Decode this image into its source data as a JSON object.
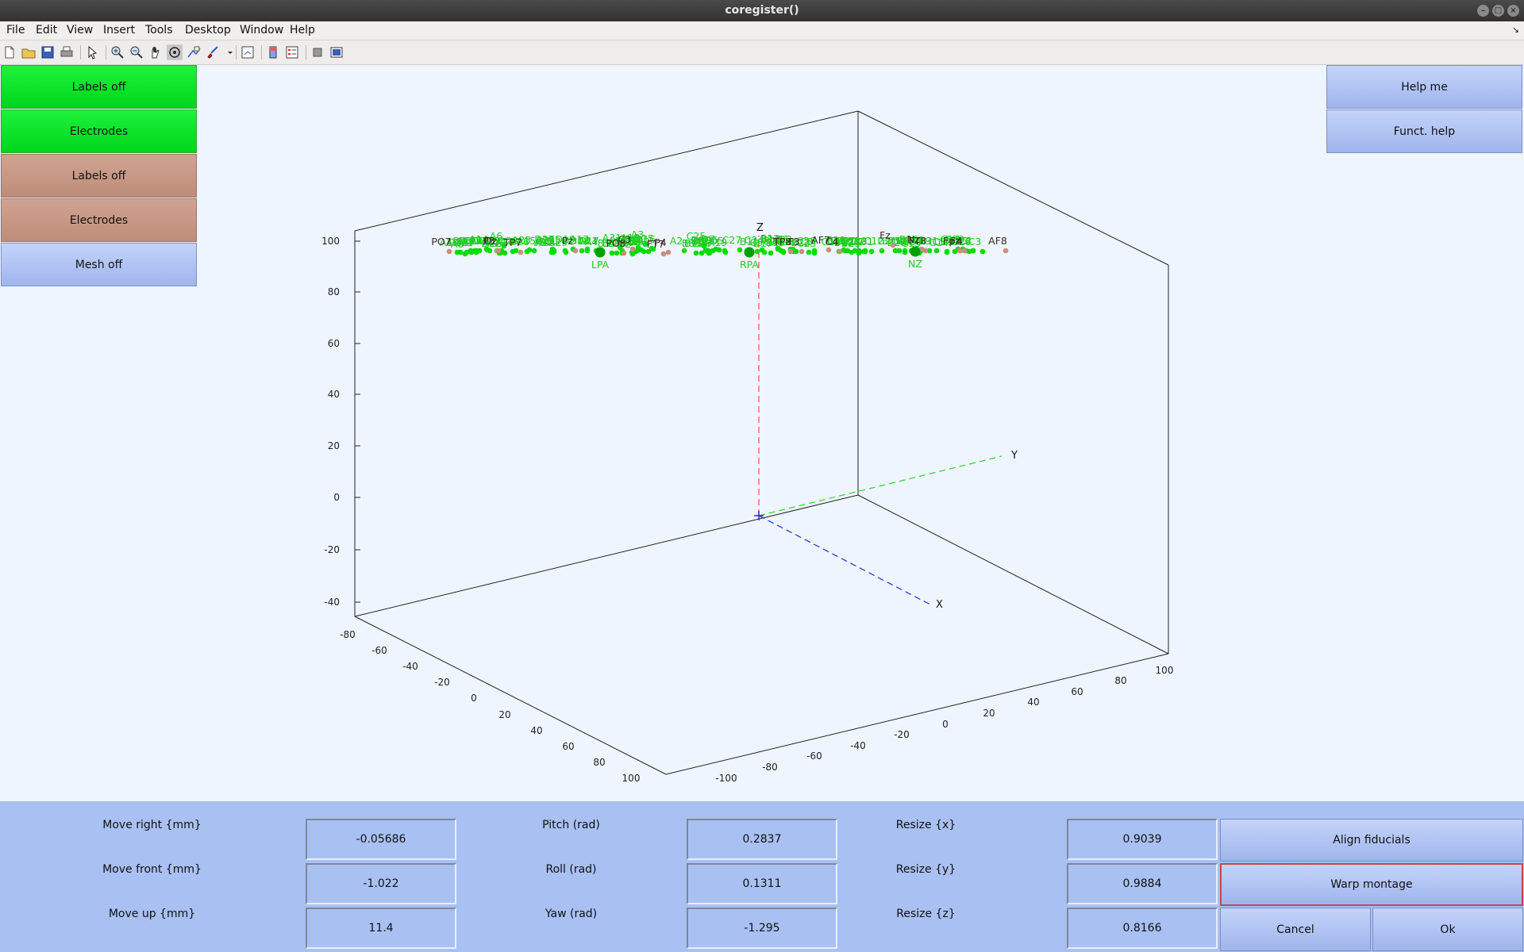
{
  "window": {
    "title": "coregister()"
  },
  "menu": [
    "File",
    "Edit",
    "View",
    "Insert",
    "Tools",
    "Desktop",
    "Window",
    "Help"
  ],
  "toolbar_icons": [
    "new-file-icon",
    "open-file-icon",
    "save-icon",
    "print-icon",
    "pointer-icon",
    "zoom-in-icon",
    "zoom-out-icon",
    "pan-icon",
    "rotate-3d-icon",
    "data-cursor-icon",
    "brush-icon",
    "link-icon",
    "colorbar-icon",
    "legend-icon",
    "hide-plot-tools-icon",
    "show-plot-tools-icon"
  ],
  "left_panel": {
    "green_labels": "Labels off",
    "green_electrodes": "Electrodes",
    "brown_labels": "Labels off",
    "brown_electrodes": "Electrodes",
    "mesh": "Mesh off"
  },
  "right_panel": {
    "help_me": "Help me",
    "funct_help": "Funct. help"
  },
  "controls": {
    "move_right_label": "Move right {mm}",
    "move_right_value": "-0.05686",
    "move_front_label": "Move front {mm}",
    "move_front_value": "-1.022",
    "move_up_label": "Move up {mm}",
    "move_up_value": "11.4",
    "pitch_label": "Pitch (rad)",
    "pitch_value": "0.2837",
    "roll_label": "Roll (rad)",
    "roll_value": "0.1311",
    "yaw_label": "Yaw (rad)",
    "yaw_value": "-1.295",
    "resize_x_label": "Resize {x}",
    "resize_x_value": "0.9039",
    "resize_y_label": "Resize {y}",
    "resize_y_value": "0.9884",
    "resize_z_label": "Resize {z}",
    "resize_z_value": "0.8166",
    "align_fiducials": "Align fiducials",
    "warp_montage": "Warp montage",
    "cancel": "Cancel",
    "ok": "Ok"
  },
  "plot": {
    "colors": {
      "green": "#00dd00",
      "brown": "#c8907a",
      "fiducial": "#00a000"
    },
    "axis_names": {
      "x": "X",
      "y": "Y",
      "z": "Z"
    },
    "z_ticks": [
      "100",
      "80",
      "60",
      "40",
      "20",
      "0",
      "-20",
      "-40"
    ],
    "left_ticks": [
      "-80",
      "-60",
      "-40",
      "-20",
      "0",
      "20",
      "40",
      "60",
      "80",
      "100"
    ],
    "front_ticks": [
      "-100",
      "-80",
      "-60",
      "-40",
      "-20",
      "0",
      "20",
      "40",
      "60",
      "80",
      "100"
    ],
    "green_electrodes": [
      [
        "A1",
        784,
        1016
      ],
      [
        "A2",
        862,
        1016
      ],
      [
        "A3",
        813,
        1008
      ],
      [
        "A4",
        755,
        1017
      ],
      [
        "A5",
        698,
        1017
      ],
      [
        "A6",
        635,
        1010
      ],
      [
        "A7",
        600,
        1018
      ],
      [
        "A8",
        586,
        1020
      ],
      [
        "A9",
        580,
        1018
      ],
      [
        "A10",
        576,
        1018
      ],
      [
        "A11",
        594,
        1018
      ],
      [
        "A12",
        598,
        1016
      ],
      [
        "A13",
        604,
        1016
      ],
      [
        "A14",
        613,
        1014
      ],
      [
        "A15",
        673,
        1016
      ],
      [
        "A16",
        614,
        1015
      ],
      [
        "A17",
        740,
        1014
      ],
      [
        "A18",
        804,
        1012
      ],
      [
        "A19",
        914,
        1018
      ],
      [
        "A20",
        803,
        1016
      ],
      [
        "A21",
        751,
        1016
      ],
      [
        "A22",
        697,
        1015
      ],
      [
        "A23",
        667,
        1015
      ],
      [
        "A24",
        646,
        1017
      ],
      [
        "A25",
        636,
        1019
      ],
      [
        "A26",
        630,
        1019
      ],
      [
        "A27",
        695,
        1018
      ],
      [
        "A28",
        697,
        1018
      ],
      [
        "A29",
        713,
        1018
      ],
      [
        "A30",
        733,
        1016
      ],
      [
        "A31",
        781,
        1012
      ],
      [
        "A32",
        817,
        1017
      ],
      [
        "B1",
        811,
        1017
      ],
      [
        "B2",
        797,
        1020
      ],
      [
        "B3",
        784,
        1019
      ],
      [
        "B4",
        777,
        1019
      ],
      [
        "B5",
        771,
        1019
      ],
      [
        "B6",
        877,
        1019
      ],
      [
        "B7",
        893,
        1019
      ],
      [
        "B8",
        898,
        1016
      ],
      [
        "B9",
        892,
        1016
      ],
      [
        "B10",
        884,
        1019
      ],
      [
        "B11",
        954,
        1017
      ],
      [
        "B12",
        980,
        1013
      ],
      [
        "B13",
        984,
        1016
      ],
      [
        "B14",
        980,
        1014
      ],
      [
        "B15",
        987,
        1018
      ],
      [
        "B16",
        981,
        1014
      ],
      [
        "B17",
        971,
        1019
      ],
      [
        "B18",
        1064,
        1016
      ],
      [
        "B19",
        1073,
        1018
      ],
      [
        "B20",
        1077,
        1016
      ],
      [
        "B21",
        1082,
        1019
      ],
      [
        "B22",
        1068,
        1016
      ],
      [
        "B23",
        1019,
        1018
      ],
      [
        "B24",
        1082,
        1017
      ],
      [
        "B25",
        1133,
        1016
      ],
      [
        "B26",
        1155,
        1014
      ],
      [
        "B27",
        1151,
        1016
      ],
      [
        "B28",
        1140,
        1018
      ],
      [
        "B29",
        1213,
        1014
      ],
      [
        "B30",
        1210,
        1016
      ],
      [
        "B31",
        1180,
        1016
      ],
      [
        "B32",
        1140,
        1016
      ],
      [
        "C1",
        1203,
        1017
      ],
      [
        "C2",
        1226,
        1016
      ],
      [
        "C3",
        1238,
        1017
      ],
      [
        "C4",
        1226,
        1016
      ],
      [
        "C5",
        1193,
        1017
      ],
      [
        "C6",
        1148,
        1016
      ],
      [
        "C7",
        1090,
        1017
      ],
      [
        "C8",
        1026,
        1017
      ],
      [
        "C9",
        963,
        1018
      ],
      [
        "C10",
        1000,
        1017
      ],
      [
        "C11",
        1057,
        1017
      ],
      [
        "C12",
        1111,
        1016
      ],
      [
        "C13",
        1158,
        1019
      ],
      [
        "C14",
        1193,
        1018
      ],
      [
        "C15",
        1217,
        1016
      ],
      [
        "C16",
        1221,
        1017
      ],
      [
        "C17",
        1207,
        1014
      ],
      [
        "C18",
        1162,
        1015
      ],
      [
        "C19",
        1171,
        1016
      ],
      [
        "C20",
        1159,
        1017
      ],
      [
        "C21",
        1128,
        1016
      ],
      [
        "C22",
        1082,
        1016
      ],
      [
        "C23",
        1026,
        1019
      ],
      [
        "C24",
        960,
        1015
      ],
      [
        "C25",
        887,
        1010
      ],
      [
        "C26",
        894,
        1019
      ],
      [
        "C27",
        932,
        1015
      ],
      [
        "C28",
        1026,
        1016
      ],
      [
        "C29",
        1063,
        1015
      ],
      [
        "C30",
        1090,
        1016
      ],
      [
        "C31",
        1098,
        1017
      ],
      [
        "C32",
        1088,
        1017
      ],
      [
        "D1",
        996,
        1014
      ],
      [
        "D2",
        999,
        1014
      ],
      [
        "D3",
        1003,
        1017
      ],
      [
        "D4",
        987,
        1017
      ],
      [
        "D5",
        913,
        1016
      ],
      [
        "D6",
        906,
        1015
      ],
      [
        "D7",
        902,
        1014
      ],
      [
        "D8",
        889,
        1015
      ],
      [
        "D9",
        889,
        1016
      ],
      [
        "D10",
        796,
        1018
      ],
      [
        "D11",
        807,
        1015
      ],
      [
        "D12",
        801,
        1017
      ],
      [
        "D13",
        798,
        1016
      ],
      [
        "D14",
        808,
        1015
      ],
      [
        "D15",
        821,
        1013
      ],
      [
        "D16",
        823,
        1014
      ],
      [
        "D17",
        752,
        1016
      ],
      [
        "D18",
        740,
        1016
      ],
      [
        "D19",
        722,
        1014
      ],
      [
        "D20",
        712,
        1016
      ],
      [
        "D21",
        698,
        1016
      ],
      [
        "D22",
        629,
        1019
      ],
      [
        "D23",
        627,
        1016
      ],
      [
        "D24",
        632,
        1016
      ],
      [
        "D25",
        626,
        1016
      ],
      [
        "D26",
        664,
        1017
      ],
      [
        "D27",
        696,
        1014
      ],
      [
        "D28",
        650,
        1016
      ],
      [
        "D29",
        617,
        1016
      ],
      [
        "D30",
        600,
        1016
      ],
      [
        "D31",
        588,
        1018
      ],
      [
        "D32",
        593,
        1016
      ]
    ],
    "brown_electrodes": [
      [
        "Fz",
        1125,
        1009
      ],
      [
        "F3",
        1010,
        1017
      ],
      [
        "F4",
        1215,
        1016
      ],
      [
        "C3",
        797,
        1014
      ],
      [
        "C4",
        1058,
        1017
      ],
      [
        "P3",
        626,
        1016
      ],
      [
        "Pz",
        725,
        1016
      ],
      [
        "P4",
        842,
        1018
      ],
      [
        "Oz",
        628,
        1016
      ],
      [
        "PO7",
        566,
        1017
      ],
      [
        "PO8",
        786,
        1019
      ],
      [
        "TP7",
        656,
        1018
      ],
      [
        "TP8",
        996,
        1017
      ],
      [
        "FT7",
        836,
        1020
      ],
      [
        "FT8",
        1166,
        1016
      ],
      [
        "AF7",
        1044,
        1015
      ],
      [
        "AF8",
        1267,
        1016
      ],
      [
        "Fpz",
        1209,
        1016
      ],
      [
        "Nz",
        1161,
        1014
      ]
    ],
    "fiducials": [
      [
        "LPA",
        756,
        1018
      ],
      [
        "RPA",
        944,
        1018
      ],
      [
        "NZ",
        1153,
        1017
      ]
    ]
  }
}
